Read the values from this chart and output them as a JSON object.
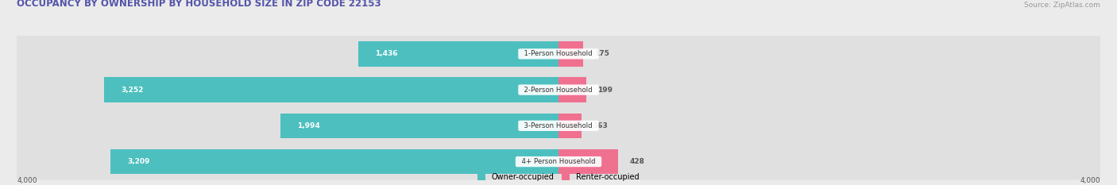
{
  "title": "OCCUPANCY BY OWNERSHIP BY HOUSEHOLD SIZE IN ZIP CODE 22153",
  "source": "Source: ZipAtlas.com",
  "categories": [
    "1-Person Household",
    "2-Person Household",
    "3-Person Household",
    "4+ Person Household"
  ],
  "owner_values": [
    1436,
    3252,
    1994,
    3209
  ],
  "renter_values": [
    175,
    199,
    163,
    428
  ],
  "owner_color": "#4dbfbf",
  "renter_color": "#f07090",
  "bg_color": "#ebebeb",
  "row_bg_color": "#e0e0e0",
  "axis_max": 4000,
  "title_color": "#5555aa",
  "source_color": "#999999",
  "bar_height": 0.7,
  "legend_owner": "Owner-occupied",
  "legend_renter": "Renter-occupied"
}
